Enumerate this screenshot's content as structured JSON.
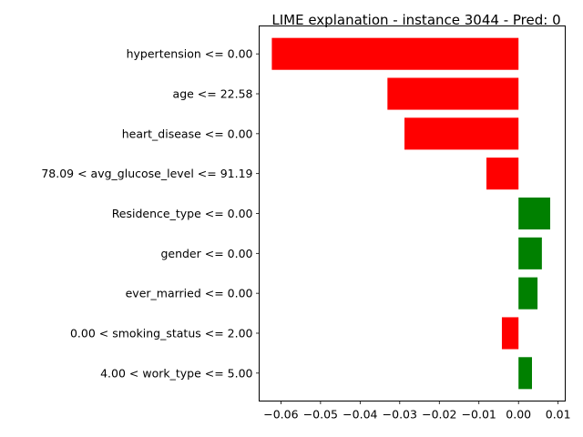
{
  "chart_data": {
    "type": "bar",
    "orientation": "horizontal",
    "title": "LIME explanation - instance 3044 - Pred: 0",
    "xlabel": "",
    "ylabel": "",
    "xlim": [
      -0.0655,
      0.0118
    ],
    "xticks": [
      -0.06,
      -0.05,
      -0.04,
      -0.03,
      -0.02,
      -0.01,
      0.0,
      0.01
    ],
    "xtick_labels": [
      "−0.06",
      "−0.05",
      "−0.04",
      "−0.03",
      "−0.02",
      "−0.01",
      "0.00",
      "0.01"
    ],
    "grid": false,
    "positive_color": "#008000",
    "negative_color": "#ff0000",
    "categories": [
      "hypertension <= 0.00",
      "age <= 22.58",
      "heart_disease <= 0.00",
      "78.09 < avg_glucose_level <= 91.19",
      "Residence_type <= 0.00",
      "gender <= 0.00",
      "ever_married <= 0.00",
      "0.00 < smoking_status <= 2.00",
      "4.00 < work_type <= 5.00"
    ],
    "values": [
      -0.0623,
      -0.0331,
      -0.0288,
      -0.0081,
      0.008,
      0.0059,
      0.0048,
      -0.0042,
      0.0034
    ]
  }
}
